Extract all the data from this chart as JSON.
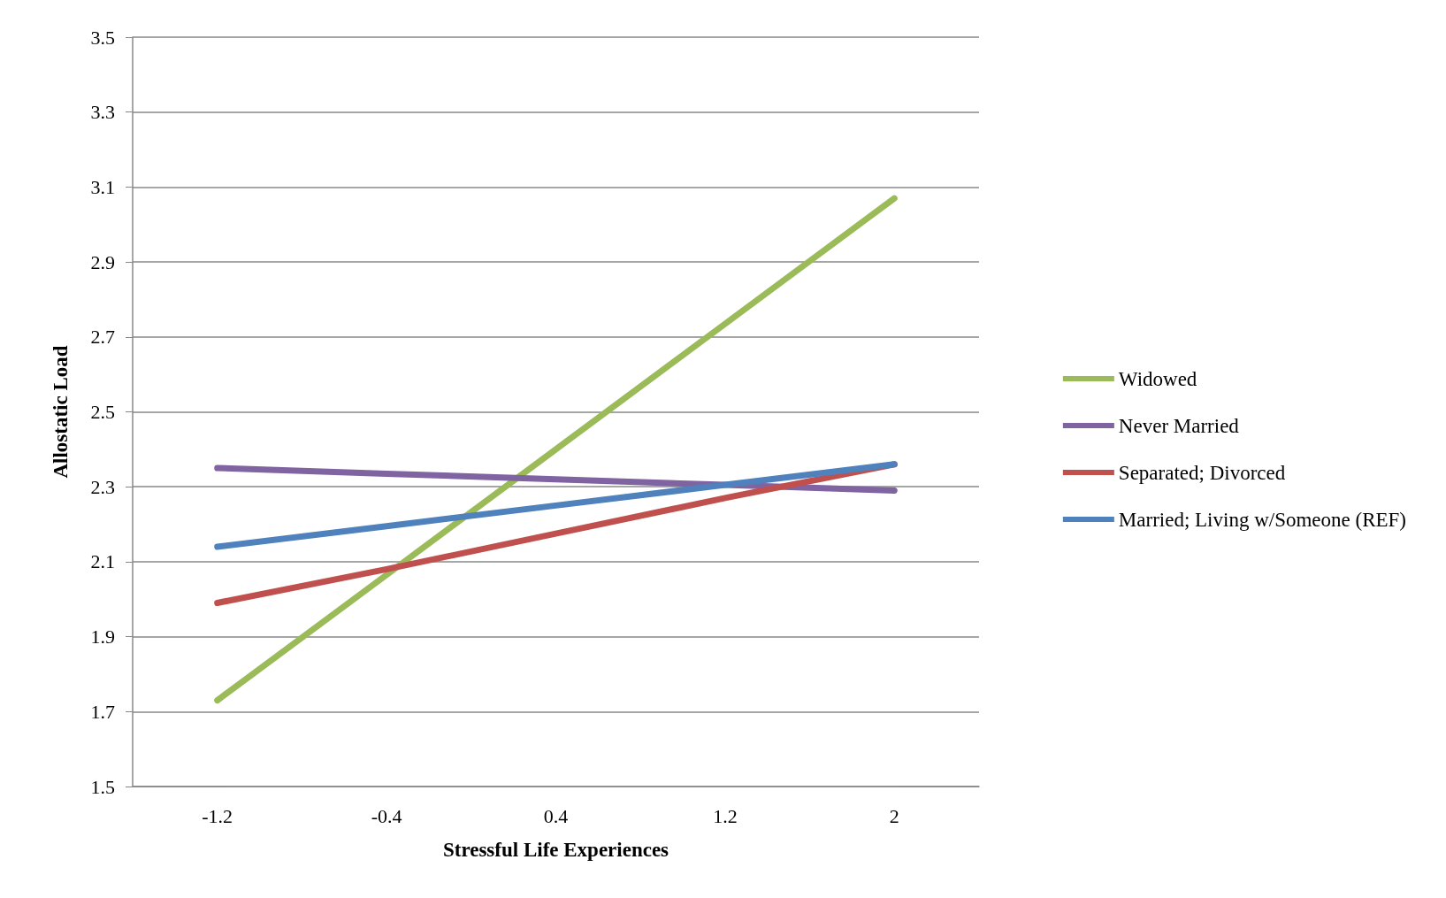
{
  "chart_data": {
    "type": "line",
    "xlabel": "Stressful Life Experiences",
    "ylabel": "Allostatic Load",
    "categories": [
      "-1.2",
      "-0.4",
      "0.4",
      "1.2",
      "2"
    ],
    "series": [
      {
        "name": "Widowed",
        "color": "#9bbb59",
        "values": [
          1.73,
          2.065,
          2.4,
          2.735,
          3.07
        ]
      },
      {
        "name": "Never Married",
        "color": "#8064a2",
        "values": [
          2.35,
          2.335,
          2.32,
          2.305,
          2.29
        ]
      },
      {
        "name": "Separated; Divorced",
        "color": "#c0504d",
        "values": [
          1.99,
          2.08,
          2.175,
          2.27,
          2.36
        ]
      },
      {
        "name": "Married; Living w/Someone (REF)",
        "color": "#4f81bd",
        "values": [
          2.14,
          2.195,
          2.25,
          2.305,
          2.36
        ]
      }
    ],
    "ylim": [
      1.5,
      3.5
    ],
    "yticks": [
      1.5,
      1.7,
      1.9,
      2.1,
      2.3,
      2.5,
      2.7,
      2.9,
      3.1,
      3.3,
      3.5
    ],
    "grid": "y",
    "legend": "right",
    "marker": "none",
    "line_style": "solid"
  }
}
